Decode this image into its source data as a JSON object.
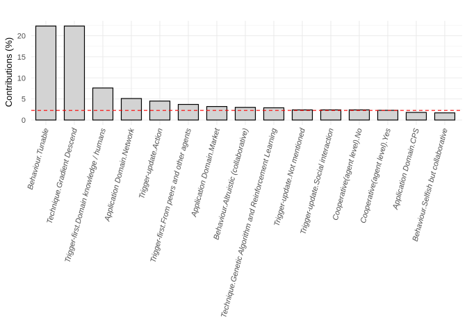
{
  "chart_data": {
    "type": "bar",
    "title": "",
    "xlabel": "",
    "ylabel": "Contributions (%)",
    "ylim": [
      0,
      23.5
    ],
    "yticks": [
      0,
      5,
      10,
      15,
      20
    ],
    "grid": true,
    "bar_fill": "#d3d3d3",
    "bar_stroke": "#000000",
    "reference_line": {
      "value": 2.27,
      "color": "#ff0000",
      "style": "dashed"
    },
    "categories": [
      "Behaviour.Tunable",
      "Technique.Gradient Descend",
      "Trigger-first.Domain knowledge / humans",
      "Application Domain.Network",
      "Trigger-update.Action",
      "Trigger-first.From peers and other agents",
      "Application Domain.Market",
      "Behaviour.Altruistic (collaborative)",
      "Technique.Genetic Algorithm and Reinforcement Learning",
      "Trigger-update.Not mentioned",
      "Trigger-update.Social interaction",
      "Cooperative(agent level).No",
      "Cooperative(agent level).Yes",
      "Application Domain.CPS",
      "Behaviour.Selfish but collaborative"
    ],
    "values": [
      22.3,
      22.3,
      7.6,
      5.1,
      4.5,
      3.7,
      3.2,
      3.0,
      2.9,
      2.4,
      2.4,
      2.4,
      2.3,
      1.8,
      1.7
    ]
  }
}
